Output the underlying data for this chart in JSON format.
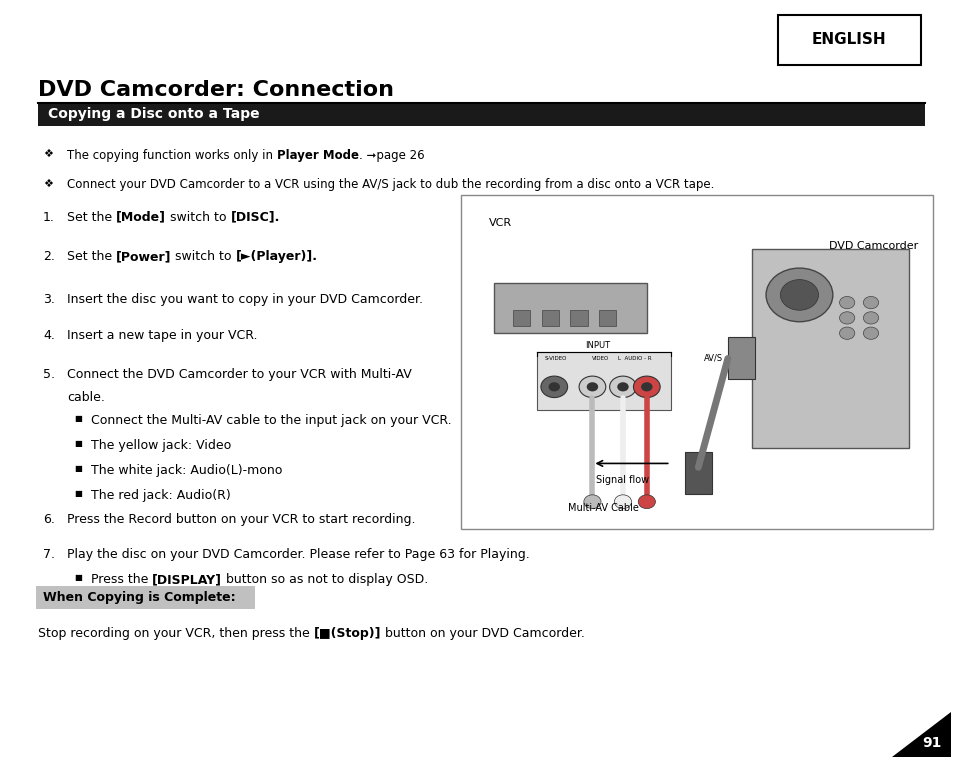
{
  "bg_color": "#ffffff",
  "page_width": 9.54,
  "page_height": 7.66,
  "title": "DVD Camcorder: Connection",
  "section_header": "Copying a Disc onto a Tape",
  "section_header_bg": "#1a1a1a",
  "section_header_text_color": "#ffffff",
  "english_label": "ENGLISH",
  "bullet_points": [
    "The copying function works only in **Player Mode**. ➞page 26",
    "Connect your DVD Camcorder to a VCR using the AV/S jack to dub the recording from a disc onto a VCR tape."
  ],
  "sub_bullets_5": [
    "Connect the Multi-AV cable to the input jack on your VCR.",
    "The yellow jack: Video",
    "The white jack: Audio(L)-mono",
    "The red jack: Audio(R)"
  ],
  "when_complete_label": "When Copying is Complete:",
  "page_number": "91",
  "vcr_label": "VCR",
  "dvd_label": "DVD Camcorder",
  "input_label": "INPUT",
  "signal_flow_label": "Signal flow",
  "multiav_label": "Multi-AV Cable",
  "avs_label": "AV/S"
}
